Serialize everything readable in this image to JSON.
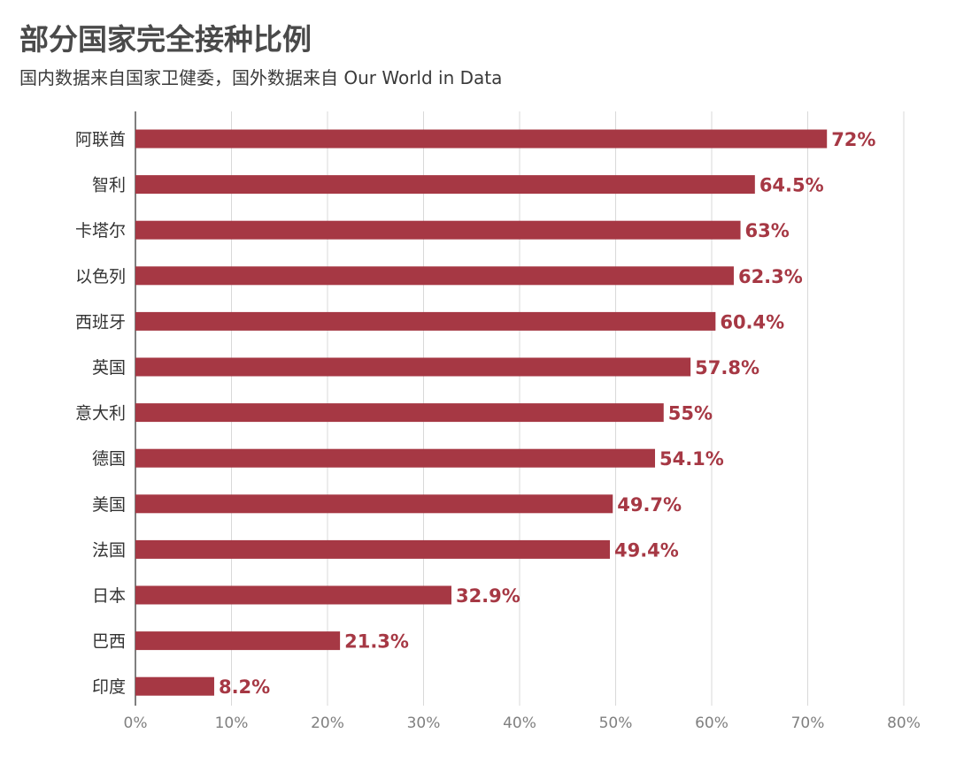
{
  "chart_data": {
    "type": "bar",
    "orientation": "horizontal",
    "title": "部分国家完全接种比例",
    "subtitle": "国内数据来自国家卫健委，国外数据来自 Our World in Data",
    "categories": [
      "阿联酋",
      "智利",
      "卡塔尔",
      "以色列",
      "西班牙",
      "英国",
      "意大利",
      "德国",
      "美国",
      "法国",
      "日本",
      "巴西",
      "印度"
    ],
    "values": [
      72,
      64.5,
      63,
      62.3,
      60.4,
      57.8,
      55,
      54.1,
      49.7,
      49.4,
      32.9,
      21.3,
      8.2
    ],
    "value_labels": [
      "72%",
      "64.5%",
      "63%",
      "62.3%",
      "60.4%",
      "57.8%",
      "55%",
      "54.1%",
      "49.7%",
      "49.4%",
      "32.9%",
      "21.3%",
      "8.2%"
    ],
    "x_ticks": [
      "0%",
      "10%",
      "20%",
      "30%",
      "40%",
      "50%",
      "60%",
      "70%",
      "80%"
    ],
    "xlim": [
      0,
      80
    ],
    "grid": true,
    "bar_color": "#a63844",
    "label_color": "#a63844"
  }
}
